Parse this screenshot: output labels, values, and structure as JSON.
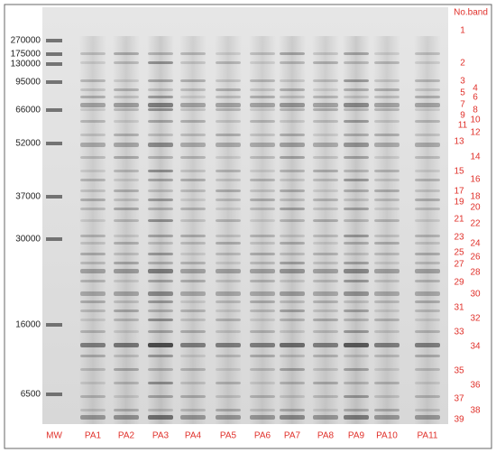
{
  "figure": {
    "header": "No.band",
    "mw_markers": [
      "270000",
      "175000",
      "130000",
      "95000",
      "66000",
      "52000",
      "37000",
      "30000",
      "16000",
      "6500"
    ],
    "lanes": [
      "MW",
      "PA1",
      "PA2",
      "PA3",
      "PA4",
      "PA5",
      "PA6",
      "PA7",
      "PA8",
      "PA9",
      "PA10",
      "PA11"
    ],
    "bands": [
      "1",
      "2",
      "3",
      "4",
      "5",
      "6",
      "7",
      "8",
      "9",
      "10",
      "11",
      "12",
      "13",
      "14",
      "15",
      "16",
      "17",
      "18",
      "19",
      "20",
      "21",
      "22",
      "23",
      "24",
      "25",
      "26",
      "27",
      "28",
      "29",
      "30",
      "31",
      "32",
      "33",
      "34",
      "35",
      "36",
      "37",
      "38",
      "39"
    ]
  }
}
